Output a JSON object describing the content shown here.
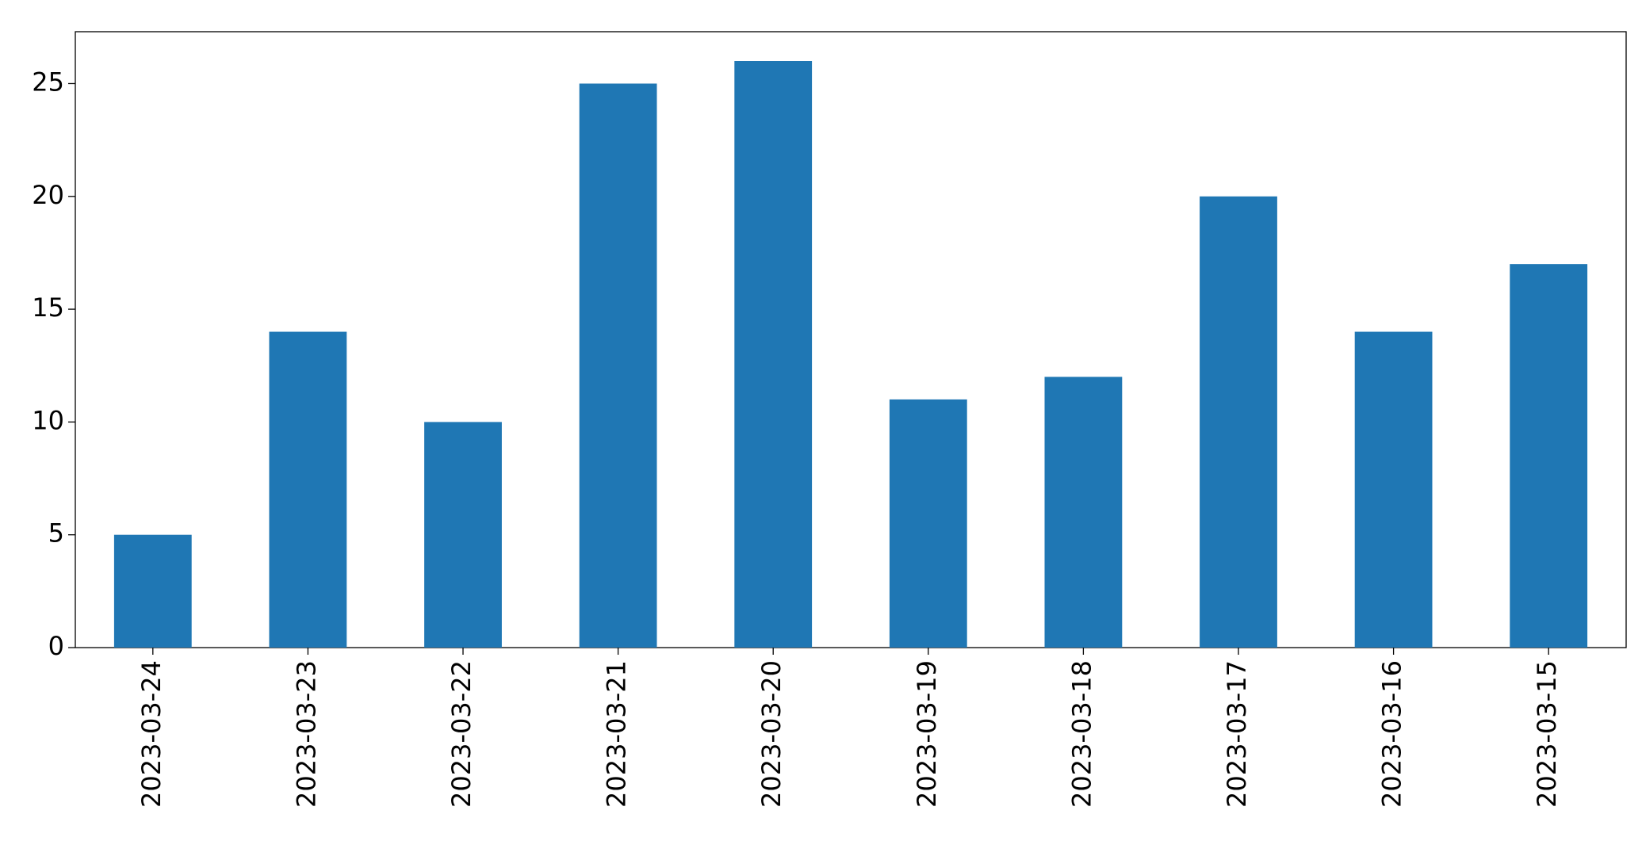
{
  "chart_data": {
    "type": "bar",
    "categories": [
      "2023-03-24",
      "2023-03-23",
      "2023-03-22",
      "2023-03-21",
      "2023-03-20",
      "2023-03-19",
      "2023-03-18",
      "2023-03-17",
      "2023-03-16",
      "2023-03-15"
    ],
    "values": [
      5,
      14,
      10,
      25,
      26,
      11,
      12,
      20,
      14,
      17
    ],
    "color": "#1f77b4",
    "ylim": [
      0,
      27.3
    ],
    "yticks": [
      0,
      5,
      10,
      15,
      20,
      25
    ],
    "grid": false
  }
}
